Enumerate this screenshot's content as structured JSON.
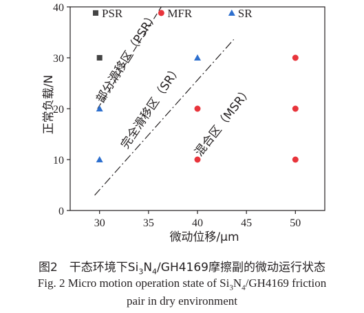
{
  "chart_data": {
    "type": "scatter",
    "xlabel": "微动位移/μm",
    "ylabel": "正常负载/N",
    "xlim": [
      27,
      53
    ],
    "ylim": [
      0,
      40
    ],
    "xticks": [
      30,
      35,
      40,
      45,
      50
    ],
    "yticks": [
      0,
      10,
      20,
      30,
      40
    ],
    "legend_position": "top",
    "series": [
      {
        "name": "PSR",
        "marker": "square",
        "color": "#444444",
        "points": [
          [
            30,
            30
          ]
        ]
      },
      {
        "name": "MFR",
        "marker": "circle",
        "color": "#e8343b",
        "points": [
          [
            40,
            10
          ],
          [
            40,
            20
          ],
          [
            50,
            10
          ],
          [
            50,
            20
          ],
          [
            50,
            30
          ]
        ]
      },
      {
        "name": "SR",
        "marker": "triangle",
        "color": "#2d6fce",
        "points": [
          [
            30,
            10
          ],
          [
            30,
            20
          ],
          [
            40,
            30
          ]
        ]
      }
    ],
    "boundaries": [
      {
        "style": "dashed",
        "from": [
          29.8,
          20
        ],
        "to": [
          36.3,
          40
        ]
      },
      {
        "style": "dashdot",
        "from": [
          29.5,
          3
        ],
        "to": [
          43.7,
          33.6
        ]
      }
    ],
    "regions": [
      {
        "label": "部分滑移区（PSR）",
        "at": [
          30.3,
          21
        ],
        "angle": -58
      },
      {
        "label": "完全滑移区（SR）",
        "at": [
          32.8,
          12
        ],
        "angle": -56
      },
      {
        "label": "混合区（MSR）",
        "at": [
          40.3,
          10.5
        ],
        "angle": -52
      }
    ]
  },
  "caption": {
    "cn_prefix": "图2　干态环境下Si",
    "cn_sub1": "3",
    "cn_mid": "N",
    "cn_sub2": "4",
    "cn_suffix": "/GH4169摩擦副的微动运行状态",
    "en_prefix": "Fig. 2  Micro motion operation state of Si",
    "en_sub1": "3",
    "en_mid": "N",
    "en_sub2": "4",
    "en_suffix": "/GH4169 friction",
    "en_line2": "pair in dry environment"
  }
}
